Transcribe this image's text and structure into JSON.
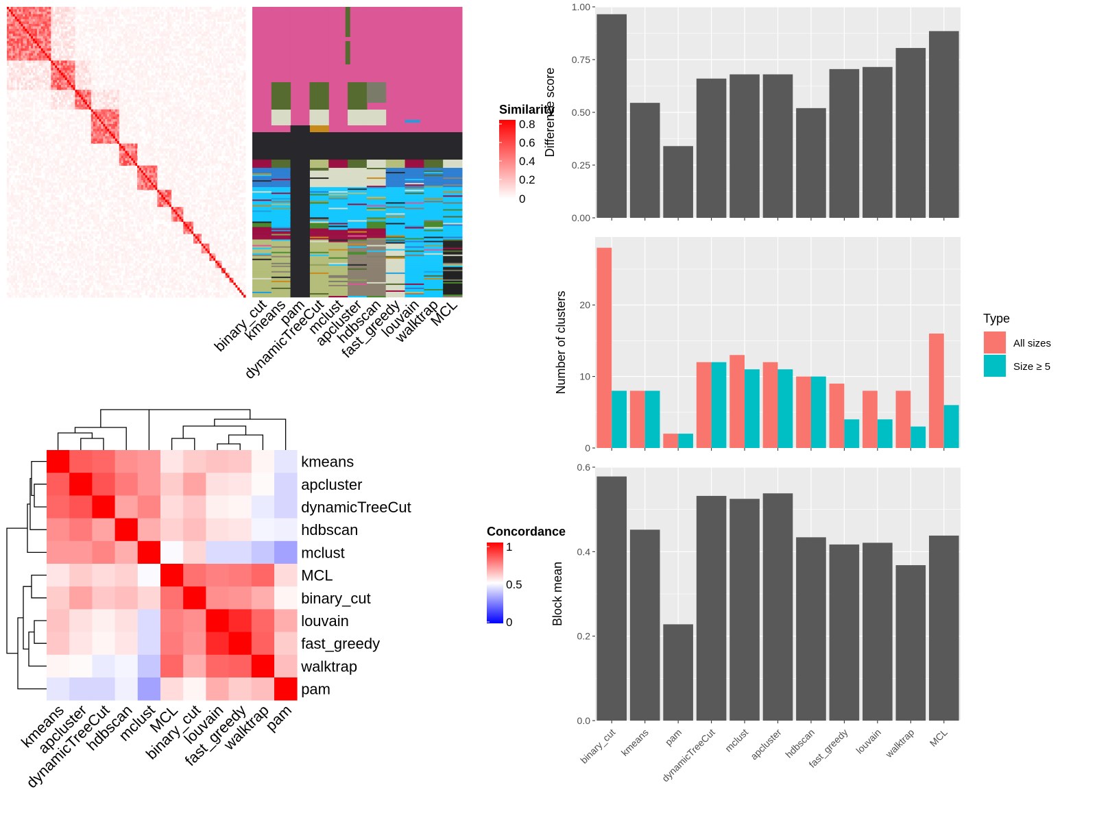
{
  "chart_data": [
    {
      "type": "heatmap",
      "title": "",
      "legend_title": "Similarity",
      "legend_ticks": [
        "0.8",
        "0.6",
        "0.4",
        "0.2",
        "0"
      ],
      "value_range": [
        0,
        0.85
      ],
      "colors": {
        "low": "#ffffff",
        "high": "#ff0000"
      },
      "block_sizes": [
        22,
        12,
        8,
        14,
        9,
        10,
        7,
        6,
        5,
        4,
        4,
        3,
        3,
        2,
        2,
        2,
        1,
        1,
        1,
        1,
        1,
        1
      ],
      "within_block_similarity": 0.45,
      "between_block_similarity": 0.03
    },
    {
      "type": "heatmap",
      "subtype": "cluster-label-annotation",
      "columns": [
        "binary_cut",
        "kmeans",
        "pam",
        "dynamicTreeCut",
        "mclust",
        "apcluster",
        "hdbscan",
        "fast_greedy",
        "louvain",
        "walktrap",
        "MCL"
      ],
      "palette": [
        "#dc5795",
        "#556b2f",
        "#d8dcc6",
        "#28282c",
        "#2a7dd1",
        "#14c8ff",
        "#4a8a2e",
        "#b5bd7a",
        "#8c8070",
        "#9b0e42",
        "#c88a1a",
        "#1ea0e0",
        "#8fa05a",
        "#7b7b6a",
        "#222222"
      ]
    },
    {
      "type": "heatmap",
      "legend_title": "Concordance",
      "legend_ticks": [
        "1",
        "0.5",
        "0"
      ],
      "colors": {
        "low": "#0000ff",
        "mid": "#ffffff",
        "high": "#ff0000"
      },
      "rows": [
        "kmeans",
        "apcluster",
        "dynamicTreeCut",
        "hdbscan",
        "mclust",
        "MCL",
        "binary_cut",
        "louvain",
        "fast_greedy",
        "walktrap",
        "pam"
      ],
      "columns": [
        "kmeans",
        "apcluster",
        "dynamicTreeCut",
        "hdbscan",
        "mclust",
        "MCL",
        "binary_cut",
        "louvain",
        "fast_greedy",
        "walktrap",
        "pam"
      ],
      "values": [
        [
          1.0,
          0.82,
          0.8,
          0.72,
          0.7,
          0.55,
          0.6,
          0.62,
          0.61,
          0.52,
          0.45
        ],
        [
          0.82,
          1.0,
          0.84,
          0.76,
          0.7,
          0.6,
          0.68,
          0.56,
          0.55,
          0.51,
          0.42
        ],
        [
          0.8,
          0.84,
          1.0,
          0.68,
          0.74,
          0.57,
          0.61,
          0.53,
          0.52,
          0.46,
          0.42
        ],
        [
          0.72,
          0.76,
          0.68,
          1.0,
          0.66,
          0.59,
          0.63,
          0.56,
          0.55,
          0.48,
          0.47
        ],
        [
          0.7,
          0.7,
          0.74,
          0.66,
          1.0,
          0.49,
          0.58,
          0.43,
          0.43,
          0.39,
          0.32
        ],
        [
          0.55,
          0.6,
          0.57,
          0.59,
          0.49,
          1.0,
          0.78,
          0.75,
          0.76,
          0.8,
          0.57
        ],
        [
          0.6,
          0.68,
          0.61,
          0.63,
          0.58,
          0.78,
          1.0,
          0.72,
          0.71,
          0.66,
          0.52
        ],
        [
          0.62,
          0.56,
          0.53,
          0.56,
          0.43,
          0.75,
          0.72,
          1.0,
          0.92,
          0.8,
          0.66
        ],
        [
          0.61,
          0.55,
          0.52,
          0.55,
          0.43,
          0.76,
          0.71,
          0.92,
          1.0,
          0.81,
          0.6
        ],
        [
          0.52,
          0.51,
          0.46,
          0.48,
          0.39,
          0.8,
          0.66,
          0.8,
          0.81,
          1.0,
          0.63
        ],
        [
          0.45,
          0.42,
          0.42,
          0.47,
          0.32,
          0.57,
          0.52,
          0.66,
          0.6,
          0.63,
          1.0
        ]
      ]
    },
    {
      "type": "bar",
      "categories": [
        "binary_cut",
        "kmeans",
        "pam",
        "dynamicTreeCut",
        "mclust",
        "apcluster",
        "hdbscan",
        "fast_greedy",
        "louvain",
        "walktrap",
        "MCL"
      ],
      "values": [
        0.965,
        0.545,
        0.34,
        0.66,
        0.68,
        0.68,
        0.52,
        0.705,
        0.715,
        0.805,
        0.885
      ],
      "xlabel": "",
      "ylabel": "Difference score",
      "ylim": [
        0,
        1
      ],
      "yticks": [
        "0.00",
        "0.25",
        "0.50",
        "0.75",
        "1.00"
      ],
      "bar_color": "#595959",
      "grid": true
    },
    {
      "type": "bar",
      "categories": [
        "binary_cut",
        "kmeans",
        "pam",
        "dynamicTreeCut",
        "mclust",
        "apcluster",
        "hdbscan",
        "fast_greedy",
        "louvain",
        "walktrap",
        "MCL"
      ],
      "series": [
        {
          "name": "All sizes",
          "color": "#f8766d",
          "values": [
            28,
            8,
            2,
            12,
            13,
            12,
            10,
            9,
            8,
            8,
            16
          ]
        },
        {
          "name": "Size ≥ 5",
          "color": "#00bfc4",
          "values": [
            8,
            8,
            2,
            12,
            11,
            11,
            10,
            4,
            4,
            3,
            6
          ]
        }
      ],
      "xlabel": "",
      "ylabel": "Number of clusters",
      "ylim": [
        0,
        29.5
      ],
      "yticks": [
        "0",
        "10",
        "20"
      ],
      "legend_title": "Type",
      "legend_position": "right",
      "grid": true
    },
    {
      "type": "bar",
      "categories": [
        "binary_cut",
        "kmeans",
        "pam",
        "dynamicTreeCut",
        "mclust",
        "apcluster",
        "hdbscan",
        "fast_greedy",
        "louvain",
        "walktrap",
        "MCL"
      ],
      "values": [
        0.578,
        0.452,
        0.228,
        0.532,
        0.525,
        0.538,
        0.434,
        0.417,
        0.421,
        0.368,
        0.438
      ],
      "xlabel": "",
      "ylabel": "Block mean",
      "ylim": [
        0,
        0.6
      ],
      "yticks": [
        "0.0",
        "0.2",
        "0.4",
        "0.6"
      ],
      "bar_color": "#595959",
      "grid": true
    }
  ]
}
